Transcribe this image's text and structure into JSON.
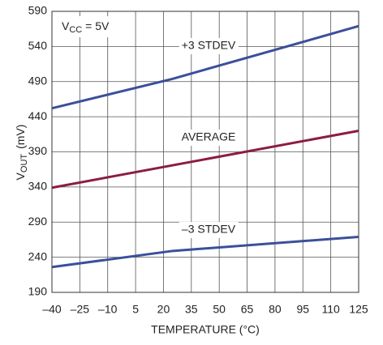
{
  "chart_data": {
    "type": "line",
    "annotation": {
      "main": "V",
      "sub": "CC",
      "rest": " = 5V"
    },
    "xlabel": "TEMPERATURE (°C)",
    "ylabel": {
      "main": "V",
      "sub": "OUT",
      "unit": "(mV)"
    },
    "xlim": [
      -40,
      125
    ],
    "xticks": [
      {
        "value": -40,
        "label": "–40"
      },
      {
        "value": -25,
        "label": "–25"
      },
      {
        "value": -10,
        "label": "–10"
      },
      5,
      20,
      35,
      50,
      65,
      80,
      95,
      110,
      125
    ],
    "ylim": [
      190,
      590
    ],
    "yticks": [
      190,
      240,
      290,
      340,
      390,
      440,
      490,
      540,
      590
    ],
    "grid": true,
    "series": [
      {
        "name": "+3 STDEV",
        "color": "#3b4f9c",
        "x": [
          -40,
          25,
          125
        ],
        "values": [
          452,
          494,
          569
        ]
      },
      {
        "name": "AVERAGE",
        "color": "#8c1d40",
        "x": [
          -40,
          125
        ],
        "values": [
          339,
          420
        ]
      },
      {
        "name": "–3 STDEV",
        "color": "#3b4f9c",
        "x": [
          -40,
          25,
          125
        ],
        "values": [
          226,
          249,
          269
        ]
      }
    ]
  }
}
